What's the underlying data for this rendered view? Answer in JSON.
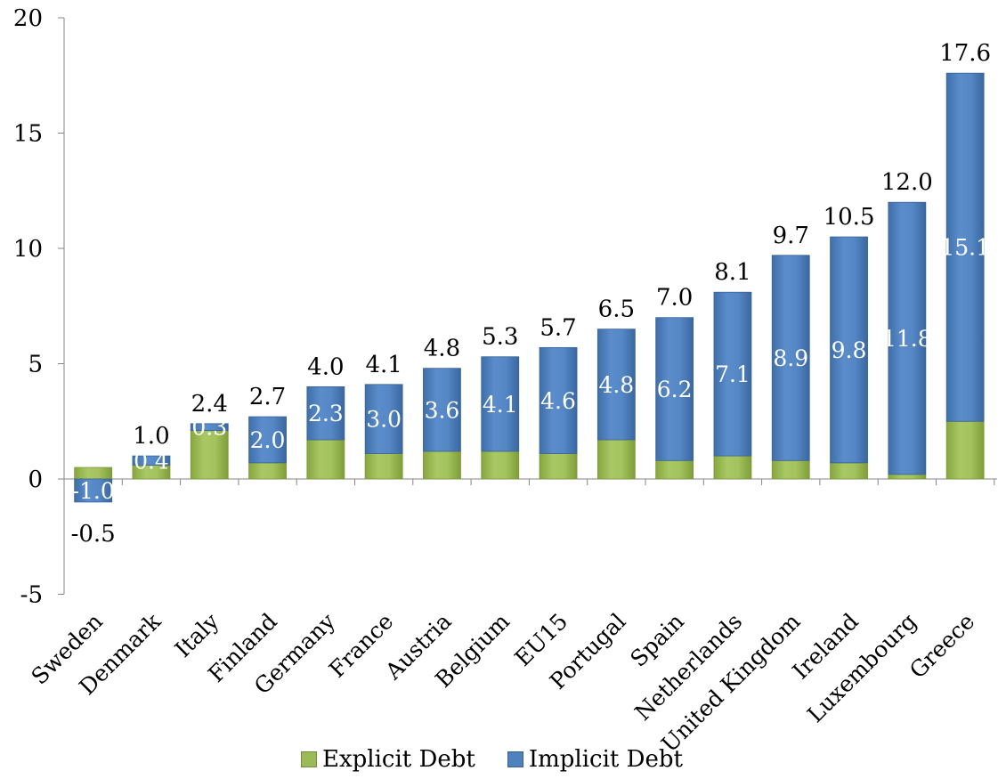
{
  "chart_data": {
    "type": "bar",
    "stacked": true,
    "title": "",
    "xlabel": "",
    "ylabel": "",
    "ylim": [
      -5,
      20
    ],
    "yticks": [
      "-5",
      "0",
      "5",
      "10",
      "15",
      "20"
    ],
    "grid": false,
    "legend_position": "bottom",
    "categories": [
      "Sweden",
      "Denmark",
      "Italy",
      "Finland",
      "Germany",
      "France",
      "Austria",
      "Belgium",
      "EU15",
      "Portugal",
      "Spain",
      "Netherlands",
      "United Kingdom",
      "Ireland",
      "Luxembourg",
      "Greece"
    ],
    "series": [
      {
        "name": "Explicit Debt",
        "color": "#9bbb59",
        "values": [
          0.5,
          0.6,
          2.1,
          0.7,
          1.7,
          1.1,
          1.2,
          1.2,
          1.1,
          1.7,
          0.8,
          1.0,
          0.8,
          0.7,
          0.2,
          2.5
        ]
      },
      {
        "name": "Implicit Debt",
        "color": "#4f81bd",
        "values": [
          -1.0,
          0.4,
          0.3,
          2.0,
          2.3,
          3.0,
          3.6,
          4.1,
          4.6,
          4.8,
          6.2,
          7.1,
          8.9,
          9.8,
          11.8,
          15.1
        ],
        "labels": [
          "-1.0",
          "0.4",
          "0.3",
          "2.0",
          "2.3",
          "3.0",
          "3.6",
          "4.1",
          "4.6",
          "4.8",
          "6.2",
          "7.1",
          "8.9",
          "9.8",
          "11.8",
          "15.1"
        ]
      }
    ],
    "totals": [
      -0.5,
      1.0,
      2.4,
      2.7,
      4.0,
      4.1,
      4.8,
      5.3,
      5.7,
      6.5,
      7.0,
      8.1,
      9.7,
      10.5,
      12.0,
      17.6
    ],
    "total_labels": [
      "-0.5",
      "1.0",
      "2.4",
      "2.7",
      "4.0",
      "4.1",
      "4.8",
      "5.3",
      "5.7",
      "6.5",
      "7.0",
      "8.1",
      "9.7",
      "10.5",
      "12.0",
      "17.6"
    ]
  }
}
